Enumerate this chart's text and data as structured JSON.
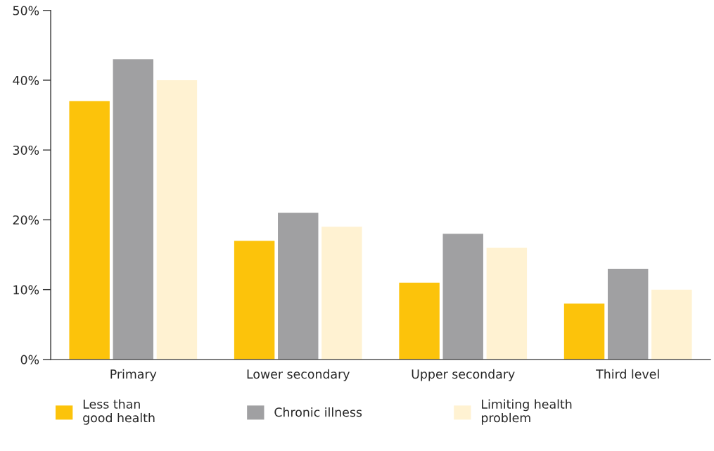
{
  "chart_data": {
    "type": "bar",
    "categories": [
      "Primary",
      "Lower secondary",
      "Upper secondary",
      "Third level"
    ],
    "series": [
      {
        "name": "Less than\ngood health",
        "color": "#fcc30b",
        "values": [
          37,
          17,
          11,
          8
        ]
      },
      {
        "name": "Chronic illness",
        "color": "#a0a0a2",
        "values": [
          43,
          21,
          18,
          13
        ]
      },
      {
        "name": "Limiting health\nproblem",
        "color": "#fff2d2",
        "values": [
          40,
          19,
          16,
          10
        ]
      }
    ],
    "ylim": [
      0,
      50
    ],
    "yticks": [
      {
        "value": 0,
        "label": "0%"
      },
      {
        "value": 10,
        "label": "10%"
      },
      {
        "value": 20,
        "label": "20%"
      },
      {
        "value": 30,
        "label": "30%"
      },
      {
        "value": 40,
        "label": "40%"
      },
      {
        "value": 50,
        "label": "50%"
      }
    ],
    "grid": false,
    "legend": "bottom"
  }
}
